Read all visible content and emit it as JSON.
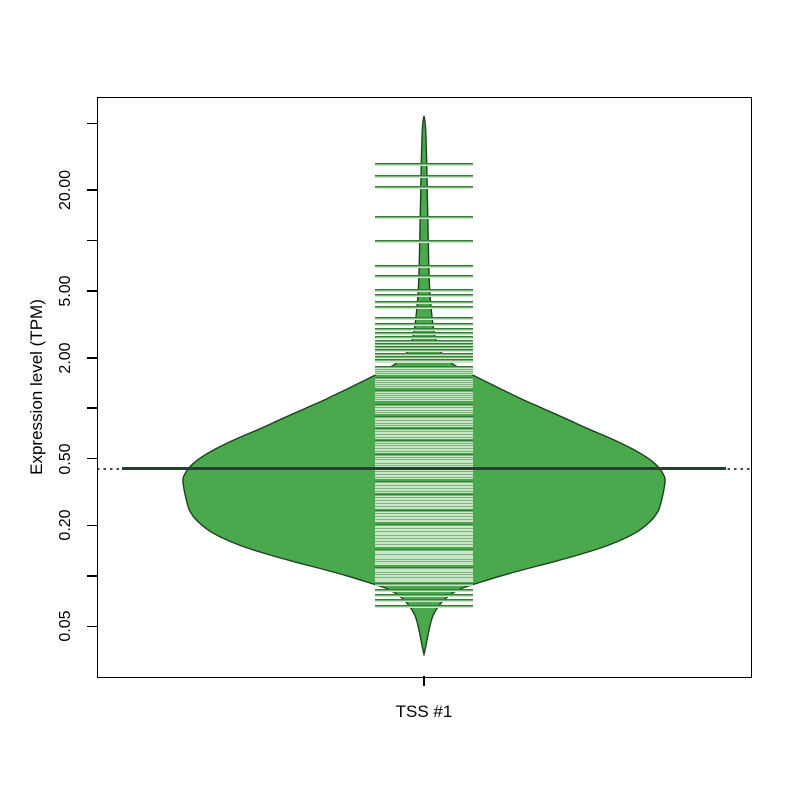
{
  "figure": {
    "x_category_label": "TSS #1",
    "y_axis_title": "Expression level (TPM)"
  },
  "chart_data": {
    "type": "violin",
    "variant": "beanplot",
    "title": "",
    "xlabel": "",
    "ylabel": "Expression level (TPM)",
    "categories": [
      "TSS #1"
    ],
    "y_scale": "log",
    "ylim": [
      0.0253,
      71.8
    ],
    "grid": false,
    "legend": "none",
    "y_ticks": [
      {
        "value": 50,
        "label": ""
      },
      {
        "value": 20,
        "label": "20.00"
      },
      {
        "value": 10,
        "label": ""
      },
      {
        "value": 5,
        "label": "5.00"
      },
      {
        "value": 2,
        "label": "2.00"
      },
      {
        "value": 1,
        "label": ""
      },
      {
        "value": 0.5,
        "label": "0.50"
      },
      {
        "value": 0.2,
        "label": "0.20"
      },
      {
        "value": 0.1,
        "label": ""
      },
      {
        "value": 0.05,
        "label": "0.05"
      }
    ],
    "average_line_value": 0.435,
    "overall_average_value": 0.435,
    "density_profile_value_halfwidth": [
      [
        55.5,
        0
      ],
      [
        50,
        1.2
      ],
      [
        41,
        2
      ],
      [
        31,
        2.6
      ],
      [
        23.4,
        3
      ],
      [
        17.8,
        3.4
      ],
      [
        11.8,
        4
      ],
      [
        7.8,
        4.6
      ],
      [
        5.9,
        5.2
      ],
      [
        4.8,
        6
      ],
      [
        3.9,
        7.2
      ],
      [
        3.2,
        8.8
      ],
      [
        2.6,
        11.5
      ],
      [
        2.27,
        15
      ],
      [
        2.05,
        20
      ],
      [
        1.85,
        28
      ],
      [
        1.68,
        40
      ],
      [
        1.5,
        56
      ],
      [
        1.31,
        76
      ],
      [
        1.14,
        97
      ],
      [
        0.99,
        120
      ],
      [
        0.86,
        143
      ],
      [
        0.75,
        165
      ],
      [
        0.655,
        188
      ],
      [
        0.57,
        209
      ],
      [
        0.513,
        222
      ],
      [
        0.467,
        231
      ],
      [
        0.425,
        237
      ],
      [
        0.38,
        241
      ],
      [
        0.33,
        240
      ],
      [
        0.29,
        238
      ],
      [
        0.25,
        235
      ],
      [
        0.22,
        229
      ],
      [
        0.19,
        217
      ],
      [
        0.17,
        203
      ],
      [
        0.152,
        184
      ],
      [
        0.136,
        159
      ],
      [
        0.122,
        131
      ],
      [
        0.11,
        102
      ],
      [
        0.1,
        77
      ],
      [
        0.092,
        57
      ],
      [
        0.084,
        37
      ],
      [
        0.077,
        26
      ],
      [
        0.071,
        19
      ],
      [
        0.064,
        13
      ],
      [
        0.058,
        9
      ],
      [
        0.052,
        6.5
      ],
      [
        0.046,
        4.5
      ],
      [
        0.04,
        2.5
      ],
      [
        0.0365,
        1.2
      ],
      [
        0.034,
        0
      ]
    ],
    "beanline_values": [
      0.066,
      0.071,
      0.076,
      0.082,
      0.089,
      0.094,
      0.0955,
      0.097,
      0.0985,
      0.1,
      0.102,
      0.105,
      0.107,
      0.109,
      0.111,
      0.118,
      0.12,
      0.122,
      0.126,
      0.128,
      0.13,
      0.133,
      0.135,
      0.137,
      0.139,
      0.142,
      0.151,
      0.154,
      0.158,
      0.161,
      0.164,
      0.167,
      0.171,
      0.174,
      0.178,
      0.181,
      0.185,
      0.189,
      0.192,
      0.196,
      0.2,
      0.213,
      0.218,
      0.222,
      0.227,
      0.232,
      0.237,
      0.242,
      0.255,
      0.26,
      0.266,
      0.271,
      0.277,
      0.283,
      0.289,
      0.295,
      0.301,
      0.32,
      0.327,
      0.334,
      0.341,
      0.348,
      0.356,
      0.363,
      0.387,
      0.395,
      0.404,
      0.412,
      0.421,
      0.43,
      0.458,
      0.468,
      0.478,
      0.488,
      0.498,
      0.509,
      0.52,
      0.554,
      0.566,
      0.578,
      0.59,
      0.603,
      0.616,
      0.629,
      0.67,
      0.684,
      0.699,
      0.714,
      0.729,
      0.745,
      0.794,
      0.811,
      0.828,
      0.846,
      0.864,
      0.882,
      0.94,
      0.965,
      0.99,
      1.016,
      1.043,
      1.127,
      1.157,
      1.187,
      1.218,
      1.25,
      1.351,
      1.387,
      1.423,
      1.461,
      1.499,
      1.621,
      1.663,
      1.707,
      1.752,
      1.89,
      1.93,
      2.0,
      2.1,
      2.2,
      2.3,
      2.4,
      2.5,
      2.65,
      2.8,
      2.95,
      3.15,
      3.45,
      4.0,
      4.3,
      4.7,
      5.05,
      6.1,
      7.0,
      9.9,
      13.8,
      20.6,
      24.2,
      28.4
    ],
    "colors": {
      "violin_fill": "#4aa84d",
      "violin_border": "#1d421f",
      "beanline_dark": "#337e36",
      "beanline_light": "#c9e7c6",
      "average_line": "#24422a",
      "overall_dash": "#41473f",
      "axis": "#000000"
    }
  }
}
